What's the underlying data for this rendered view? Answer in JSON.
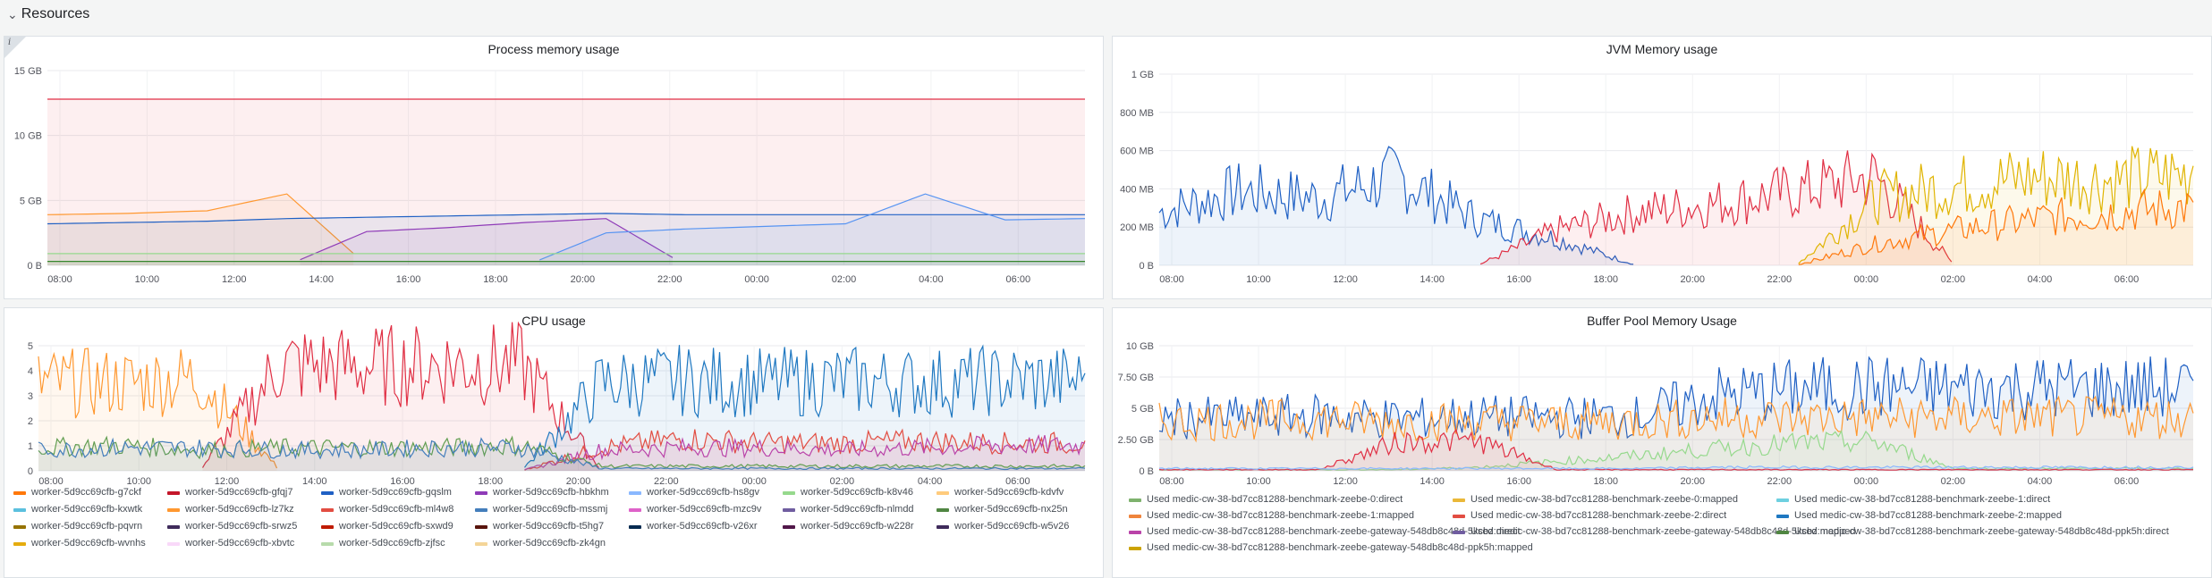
{
  "row": {
    "title": "Resources",
    "icon": "chevron-down-icon"
  },
  "panels": {
    "process_memory": {
      "title": "Process memory usage",
      "info": "i"
    },
    "jvm_memory": {
      "title": "JVM Memory usage"
    },
    "cpu": {
      "title": "CPU usage"
    },
    "buffer_pool": {
      "title": "Buffer Pool Memory Usage"
    }
  },
  "chart_data": [
    {
      "type": "line",
      "title": "Process memory usage",
      "yticks": [
        "0 B",
        "5 GB",
        "10 GB",
        "15 GB"
      ],
      "ylim": [
        0,
        15
      ],
      "xticks": [
        "08:00",
        "10:00",
        "12:00",
        "14:00",
        "16:00",
        "18:00",
        "20:00",
        "22:00",
        "00:00",
        "02:00",
        "04:00",
        "06:00"
      ],
      "series": [
        {
          "color": "#e02f44",
          "values": [
            12.8,
            12.8,
            12.8,
            12.8,
            12.8,
            12.8,
            12.8,
            12.8,
            12.8,
            12.8,
            12.8,
            12.8,
            12.8,
            12.8
          ]
        },
        {
          "color": "#ff9830",
          "values": [
            3.9,
            4.0,
            4.2,
            5.5,
            0,
            0,
            0,
            0,
            0,
            0,
            0,
            0,
            0,
            0
          ]
        },
        {
          "color": "#1f60c4",
          "values": [
            3.2,
            3.3,
            3.4,
            3.6,
            3.7,
            3.8,
            3.9,
            4.0,
            3.9,
            3.9,
            3.9,
            3.9,
            3.9,
            3.9
          ]
        },
        {
          "color": "#8f3bb8",
          "values": [
            0,
            0,
            0,
            0,
            2.6,
            2.9,
            3.3,
            3.6,
            0,
            0,
            0,
            0,
            0,
            0
          ]
        },
        {
          "color": "#5794f2",
          "values": [
            0,
            0,
            0,
            0,
            0,
            0,
            0,
            2.5,
            2.8,
            3.0,
            3.2,
            5.5,
            3.5,
            3.6
          ]
        },
        {
          "color": "#96d98d",
          "values": [
            0.9,
            0.9,
            0.9,
            0.9,
            0.9,
            0.9,
            0.9,
            0.9,
            0.9,
            0.9,
            0.9,
            0.9,
            0.9,
            0.9
          ]
        },
        {
          "color": "#37872d",
          "values": [
            0.3,
            0.3,
            0.3,
            0.3,
            0.3,
            0.3,
            0.3,
            0.3,
            0.3,
            0.3,
            0.3,
            0.3,
            0.3,
            0.3
          ]
        }
      ]
    },
    {
      "type": "line",
      "title": "JVM Memory usage",
      "yticks": [
        "0 B",
        "200 MB",
        "400 MB",
        "600 MB",
        "800 MB",
        "1 GB"
      ],
      "ylim": [
        0,
        1000
      ],
      "xticks": [
        "08:00",
        "10:00",
        "12:00",
        "14:00",
        "16:00",
        "18:00",
        "20:00",
        "22:00",
        "00:00",
        "02:00",
        "04:00",
        "06:00"
      ],
      "series": [
        {
          "color": "#1f60c4",
          "values": [
            300,
            420,
            380,
            500,
            260,
            150,
            0,
            0,
            0,
            0,
            0,
            0,
            0,
            0
          ]
        },
        {
          "color": "#e02f44",
          "values": [
            0,
            0,
            0,
            0,
            0,
            200,
            300,
            350,
            420,
            500,
            0,
            0,
            0,
            0
          ]
        },
        {
          "color": "#e0b400",
          "values": [
            0,
            0,
            0,
            0,
            0,
            0,
            0,
            0,
            0,
            380,
            450,
            500,
            480,
            520
          ]
        },
        {
          "color": "#ff780a",
          "values": [
            0,
            0,
            0,
            0,
            0,
            0,
            0,
            0,
            0,
            120,
            200,
            260,
            300,
            330
          ]
        }
      ]
    },
    {
      "type": "line",
      "title": "CPU usage",
      "yticks": [
        "0",
        "1",
        "2",
        "3",
        "4",
        "5"
      ],
      "ylim": [
        0,
        5
      ],
      "xticks": [
        "08:00",
        "10:00",
        "12:00",
        "14:00",
        "16:00",
        "18:00",
        "20:00",
        "22:00",
        "00:00",
        "02:00",
        "04:00",
        "06:00"
      ],
      "series": [
        {
          "color": "#ff9830",
          "values": [
            3.8,
            3.8,
            4.0,
            0,
            0,
            0,
            0,
            0,
            0,
            0,
            0,
            0,
            0,
            0
          ]
        },
        {
          "color": "#e02f44",
          "values": [
            0,
            0,
            0,
            4.6,
            4.5,
            4.6,
            4.6,
            0,
            0,
            0,
            0,
            0,
            0,
            0
          ]
        },
        {
          "color": "#1f78c1",
          "values": [
            0,
            0,
            0,
            0,
            0,
            0,
            0,
            3.8,
            3.9,
            3.8,
            3.9,
            3.8,
            3.9,
            3.9
          ]
        },
        {
          "color": "#e24d42",
          "values": [
            0,
            0,
            0,
            0,
            0,
            0,
            0,
            1.0,
            1.4,
            1.2,
            1.2,
            1.3,
            1.2,
            1.2
          ]
        },
        {
          "color": "#ba43a9",
          "values": [
            0,
            0,
            0,
            0,
            0,
            0,
            0,
            0.9,
            1.0,
            1.0,
            0.9,
            1.0,
            1.1,
            1.1
          ]
        },
        {
          "color": "#629e51",
          "values": [
            1.0,
            1.1,
            0.9,
            1.0,
            1.0,
            1.0,
            1.1,
            0.2,
            0.2,
            0.2,
            0.2,
            0.2,
            0.2,
            0.2
          ]
        },
        {
          "color": "#447ebc",
          "values": [
            0.9,
            1.0,
            1.0,
            0.9,
            0.9,
            1.0,
            1.0,
            0.1,
            0.1,
            0.1,
            0.1,
            0.1,
            0.1,
            0.1
          ]
        }
      ]
    },
    {
      "type": "line",
      "title": "Buffer Pool Memory Usage",
      "yticks": [
        "0 B",
        "2.50 GB",
        "5 GB",
        "7.50 GB",
        "10 GB"
      ],
      "ylim": [
        0,
        10
      ],
      "xticks": [
        "08:00",
        "10:00",
        "12:00",
        "14:00",
        "16:00",
        "18:00",
        "20:00",
        "22:00",
        "00:00",
        "02:00",
        "04:00",
        "06:00"
      ],
      "series": [
        {
          "color": "#1f60c4",
          "values": [
            4.5,
            4.6,
            4.8,
            4.5,
            4.7,
            4.6,
            4.7,
            6.5,
            7.0,
            7.2,
            7.1,
            7.2,
            7.1,
            7.2
          ]
        },
        {
          "color": "#ff9830",
          "values": [
            4.2,
            4.4,
            4.5,
            4.2,
            4.3,
            4.2,
            4.3,
            4.6,
            4.6,
            4.6,
            4.6,
            4.6,
            4.6,
            4.6
          ]
        },
        {
          "color": "#96d98d",
          "values": [
            0.1,
            0.1,
            0.1,
            0.1,
            0.3,
            0.8,
            1.3,
            1.9,
            2.4,
            2.5,
            0.2,
            0.2,
            0.2,
            0.2
          ]
        },
        {
          "color": "#e02f44",
          "values": [
            0.1,
            0.1,
            0.1,
            2.5,
            2.6,
            0.1,
            0.1,
            0.1,
            0.1,
            0.1,
            0.1,
            0.1,
            0.1,
            0.1
          ]
        },
        {
          "color": "#8ab8ff",
          "values": [
            0.2,
            0.2,
            0.2,
            0.2,
            0.2,
            0.2,
            0.2,
            0.3,
            0.3,
            0.3,
            0.3,
            0.3,
            0.3,
            0.3
          ]
        }
      ]
    }
  ],
  "cpu_legend": [
    {
      "label": "worker-5d9cc69cfb-g7ckf",
      "color": "#ff780a"
    },
    {
      "label": "worker-5d9cc69cfb-gfqj7",
      "color": "#c4162a"
    },
    {
      "label": "worker-5d9cc69cfb-gqslm",
      "color": "#1f60c4"
    },
    {
      "label": "worker-5d9cc69cfb-hbkhm",
      "color": "#8f3bb8"
    },
    {
      "label": "worker-5d9cc69cfb-hs8gv",
      "color": "#8ab8ff"
    },
    {
      "label": "worker-5d9cc69cfb-k8v46",
      "color": "#96d98d"
    },
    {
      "label": "worker-5d9cc69cfb-kdvfv",
      "color": "#ffcb7d"
    },
    {
      "label": "worker-5d9cc69cfb-kxwtk",
      "color": "#5bc0de"
    },
    {
      "label": "worker-5d9cc69cfb-lz7kz",
      "color": "#ff9830"
    },
    {
      "label": "worker-5d9cc69cfb-ml4w8",
      "color": "#e24d42"
    },
    {
      "label": "worker-5d9cc69cfb-mssmj",
      "color": "#447ebc"
    },
    {
      "label": "worker-5d9cc69cfb-mzc9v",
      "color": "#de62c9"
    },
    {
      "label": "worker-5d9cc69cfb-nlmdd",
      "color": "#705da0"
    },
    {
      "label": "worker-5d9cc69cfb-nx25n",
      "color": "#508642"
    },
    {
      "label": "worker-5d9cc69cfb-pqvrn",
      "color": "#967302"
    },
    {
      "label": "worker-5d9cc69cfb-srwz5",
      "color": "#3f2b5b"
    },
    {
      "label": "worker-5d9cc69cfb-sxwd9",
      "color": "#bf1b00"
    },
    {
      "label": "worker-5d9cc69cfb-t5hg7",
      "color": "#58140c"
    },
    {
      "label": "worker-5d9cc69cfb-v26xr",
      "color": "#052b51"
    },
    {
      "label": "worker-5d9cc69cfb-w228r",
      "color": "#511749"
    },
    {
      "label": "worker-5d9cc69cfb-w5v26",
      "color": "#3f2b5b"
    },
    {
      "label": "worker-5d9cc69cfb-wvnhs",
      "color": "#e5ac0e"
    },
    {
      "label": "worker-5d9cc69cfb-xbvtc",
      "color": "#f9d9f9"
    },
    {
      "label": "worker-5d9cc69cfb-zjfsc",
      "color": "#b7dbab"
    },
    {
      "label": "worker-5d9cc69cfb-zk4gn",
      "color": "#f4d598"
    }
  ],
  "buffer_legend": [
    {
      "label": "Used medic-cw-38-bd7cc81288-benchmark-zeebe-0:direct",
      "color": "#7eb26d"
    },
    {
      "label": "Used medic-cw-38-bd7cc81288-benchmark-zeebe-0:mapped",
      "color": "#eab839"
    },
    {
      "label": "Used medic-cw-38-bd7cc81288-benchmark-zeebe-1:direct",
      "color": "#6ed0e0"
    },
    {
      "label": "Used medic-cw-38-bd7cc81288-benchmark-zeebe-1:mapped",
      "color": "#ef843c"
    },
    {
      "label": "Used medic-cw-38-bd7cc81288-benchmark-zeebe-2:direct",
      "color": "#e24d42"
    },
    {
      "label": "Used medic-cw-38-bd7cc81288-benchmark-zeebe-2:mapped",
      "color": "#1f78c1"
    },
    {
      "label": "Used medic-cw-38-bd7cc81288-benchmark-zeebe-gateway-548db8c48d-5kcbz:direct",
      "color": "#ba43a9"
    },
    {
      "label": "Used medic-cw-38-bd7cc81288-benchmark-zeebe-gateway-548db8c48d-5kcbz:mapped",
      "color": "#705da0"
    },
    {
      "label": "Used medic-cw-38-bd7cc81288-benchmark-zeebe-gateway-548db8c48d-ppk5h:direct",
      "color": "#508642"
    },
    {
      "label": "Used medic-cw-38-bd7cc81288-benchmark-zeebe-gateway-548db8c48d-ppk5h:mapped",
      "color": "#cca300"
    }
  ]
}
